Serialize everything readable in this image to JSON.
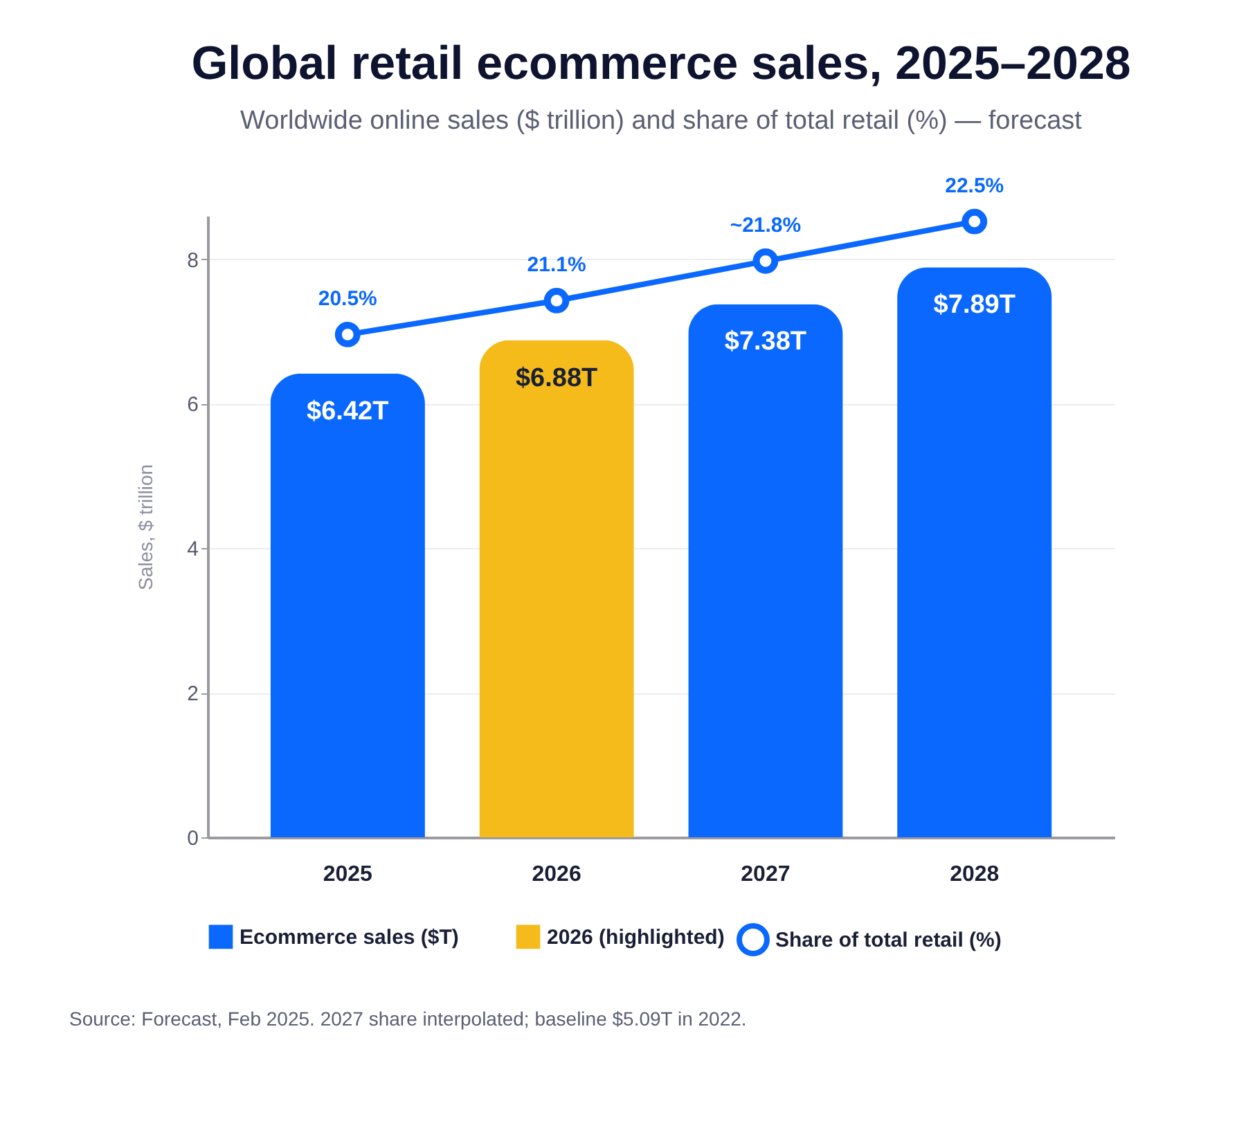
{
  "chart_data": {
    "type": "bar",
    "title": "Global retail ecommerce sales, 2025–2028",
    "subtitle": "Worldwide online sales ($ trillion) and share of total retail (%) — forecast",
    "ylabel": "Sales, $ trillion",
    "categories": [
      "2025",
      "2026",
      "2027",
      "2028"
    ],
    "series": [
      {
        "name": "Ecommerce sales ($T)",
        "color": "#0a68fe",
        "values": [
          6.42,
          null,
          7.38,
          7.89
        ],
        "value_labels": [
          "$6.42T",
          null,
          "$7.38T",
          "$7.89T"
        ]
      },
      {
        "name": "2026 (highlighted)",
        "color": "#f4bb1b",
        "values": [
          null,
          6.88,
          null,
          null
        ],
        "value_labels": [
          null,
          "$6.88T",
          null,
          null
        ]
      },
      {
        "name": "Share of total retail (%)",
        "type": "line",
        "axis": "y2",
        "color": "#0a68fe",
        "marker": "circle",
        "values": [
          20.5,
          21.1,
          21.8,
          22.5
        ],
        "value_labels": [
          "20.5%",
          "21.1%",
          "~21.8%",
          "22.5%"
        ]
      }
    ],
    "ylim": [
      0,
      8.6
    ],
    "yticks": [
      0,
      2,
      4,
      6,
      8
    ],
    "y2lim": [
      11.6,
      22.6
    ],
    "tick_labels": "xy",
    "grid": "y",
    "legend": "bottom",
    "annotations": [
      "Source: Forecast, Feb 2025. 2027 share interpolated; baseline $5.09T in 2022."
    ]
  }
}
